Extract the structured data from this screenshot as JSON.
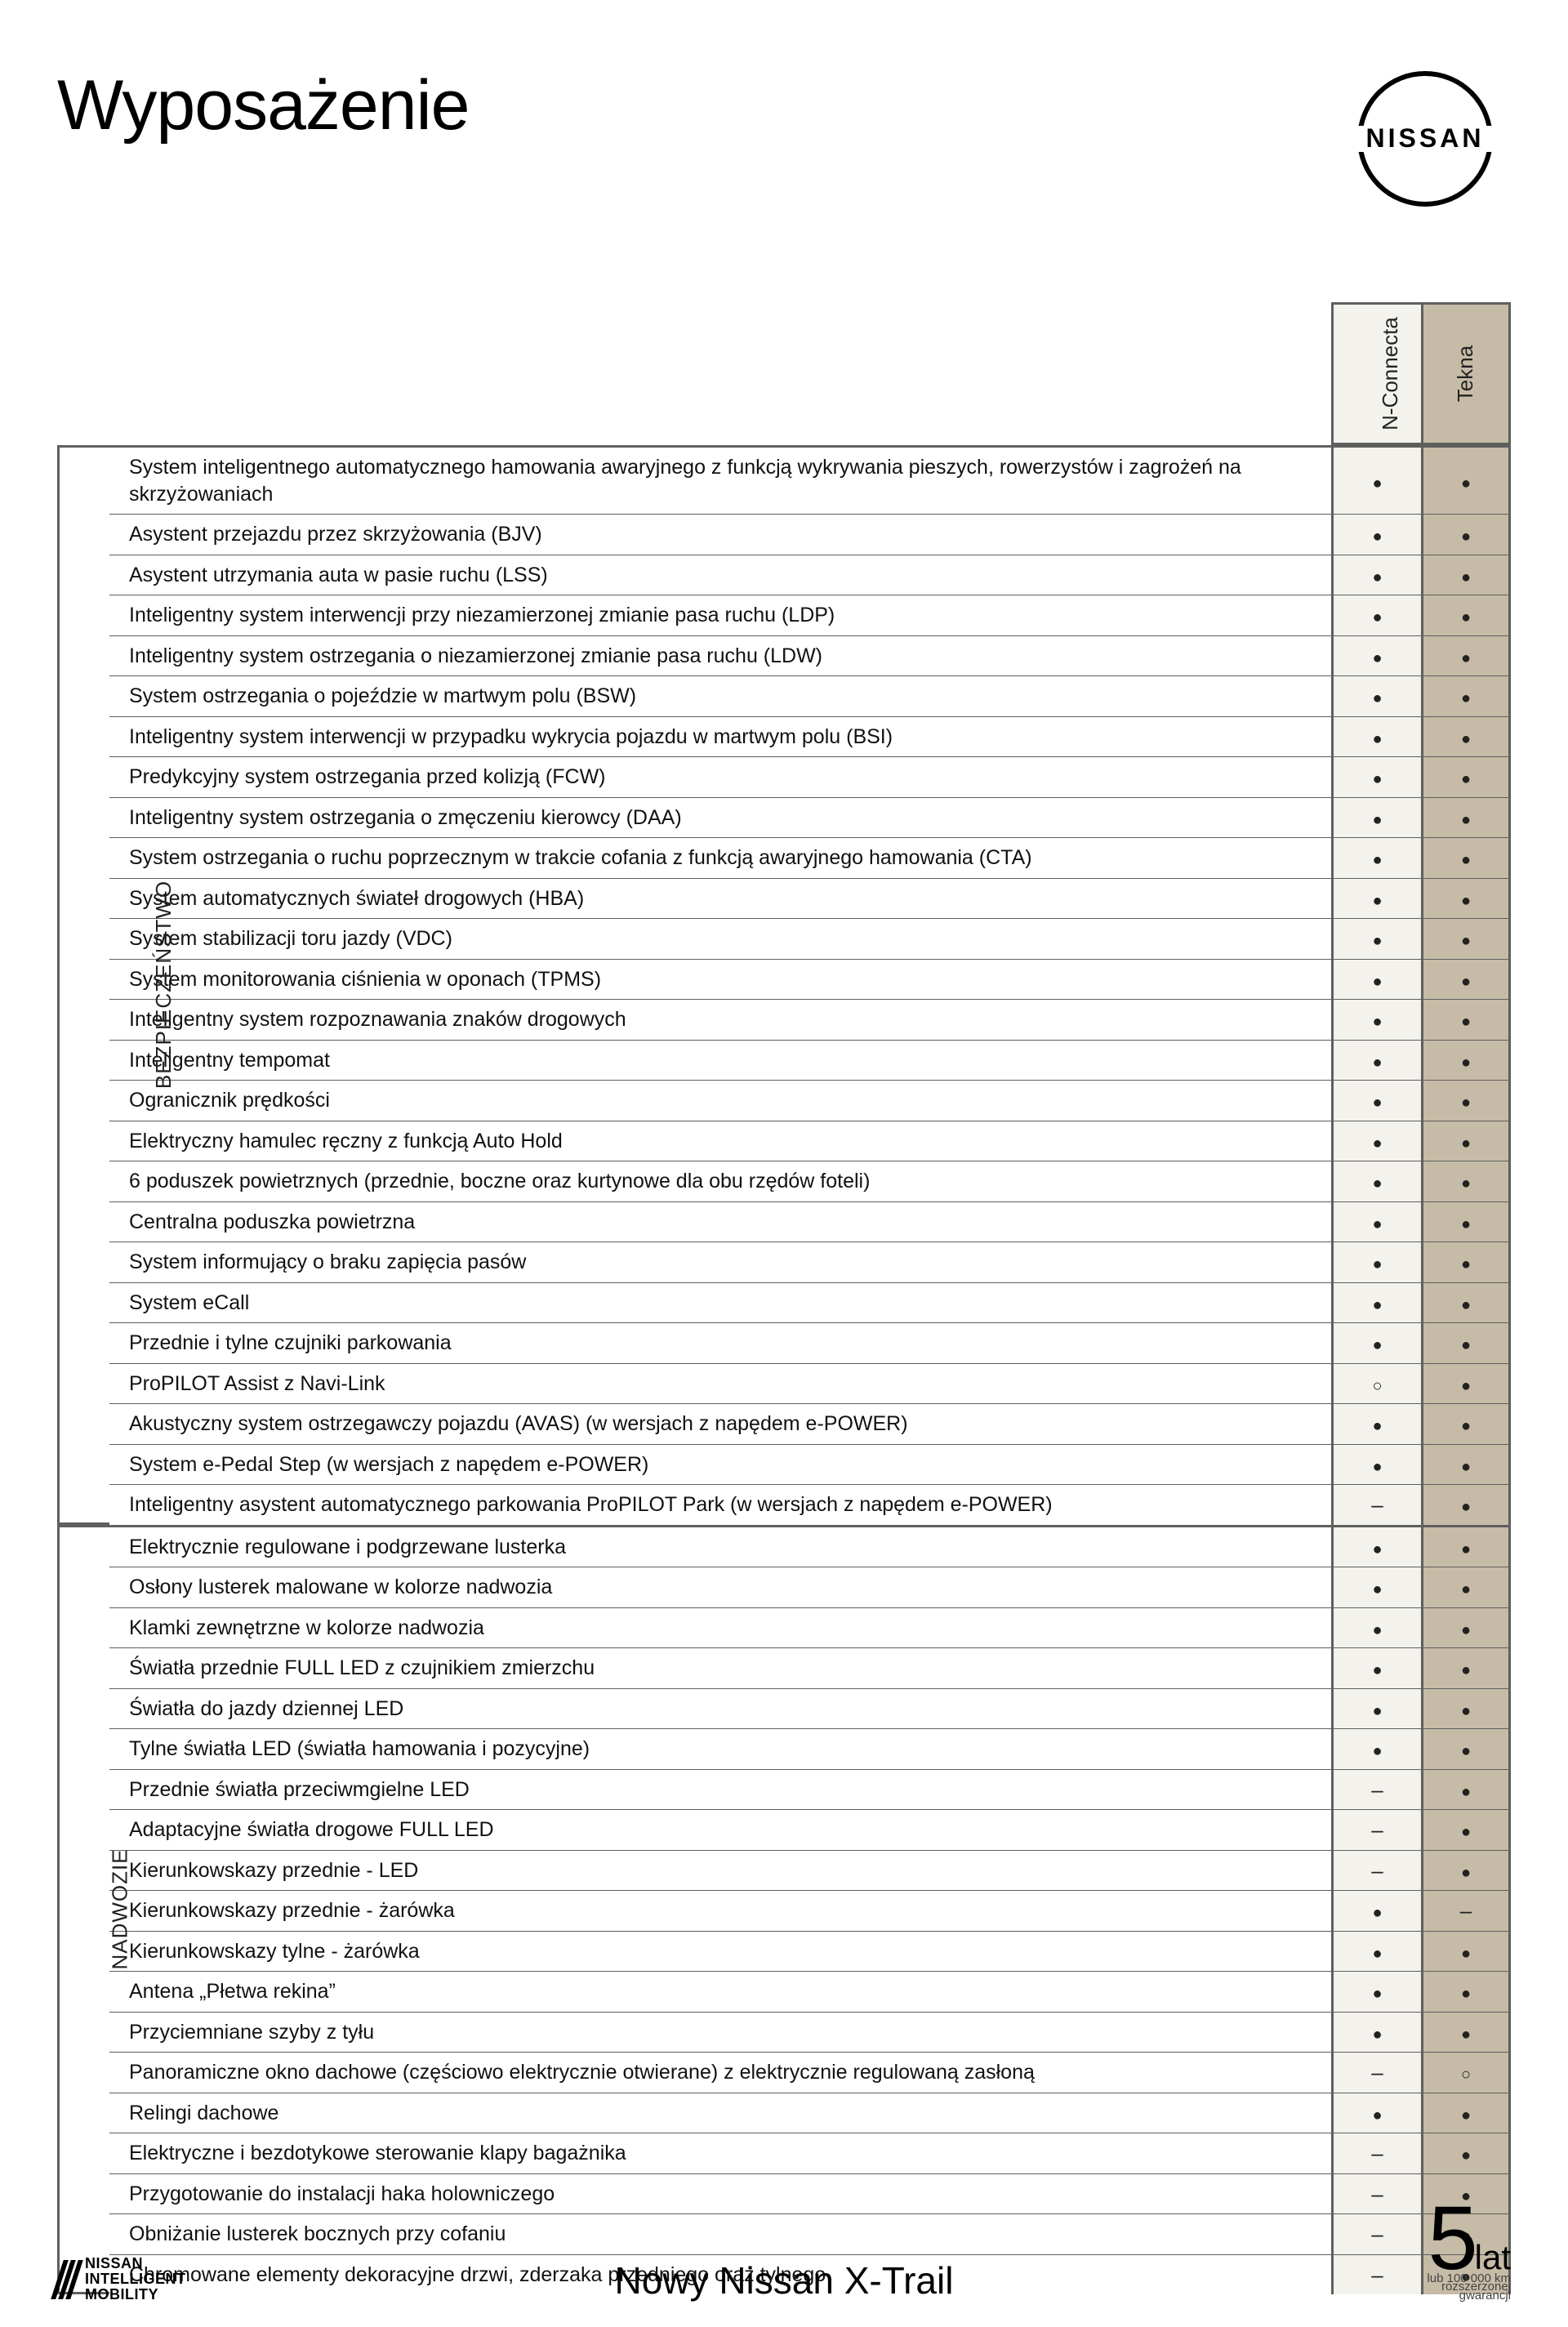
{
  "page": {
    "title": "Wyposażenie",
    "footer_model": "Nowy Nissan X-Trail"
  },
  "brand": {
    "name": "NISSAN",
    "mobility_line1": "NISSAN",
    "mobility_line2": "INTELLIGENT",
    "mobility_line3": "MOBILITY"
  },
  "warranty": {
    "years": "5",
    "years_label": "lat",
    "sub1": "lub 100 000 km",
    "sub2": "rozszerzonej",
    "sub3": "gwarancji"
  },
  "colors": {
    "trim_bg": [
      "#f3f2ed",
      "#c6bba6"
    ],
    "border": "#5f5f5f"
  },
  "trims": [
    "N-Connecta",
    "Tekna"
  ],
  "legend": {
    "standard": "●",
    "optional": "○",
    "na": "–"
  },
  "categories": [
    {
      "name": "BEZPIECZEŃSTWO",
      "rows": [
        {
          "label": "System inteligentnego automatycznego hamowania awaryjnego z funkcją wykrywania pieszych, rowerzystów i zagrożeń na skrzyżowaniach",
          "marks": [
            "●",
            "●"
          ]
        },
        {
          "label": "Asystent przejazdu przez skrzyżowania (BJV)",
          "marks": [
            "●",
            "●"
          ]
        },
        {
          "label": "Asystent utrzymania auta w pasie ruchu (LSS)",
          "marks": [
            "●",
            "●"
          ]
        },
        {
          "label": "Inteligentny system interwencji przy niezamierzonej zmianie pasa ruchu (LDP)",
          "marks": [
            "●",
            "●"
          ]
        },
        {
          "label": "Inteligentny system ostrzegania o niezamierzonej zmianie pasa ruchu (LDW)",
          "marks": [
            "●",
            "●"
          ]
        },
        {
          "label": "System ostrzegania o pojeździe w martwym polu (BSW)",
          "marks": [
            "●",
            "●"
          ]
        },
        {
          "label": "Inteligentny system interwencji w przypadku wykrycia pojazdu w martwym polu (BSI)",
          "marks": [
            "●",
            "●"
          ]
        },
        {
          "label": "Predykcyjny system ostrzegania przed kolizją (FCW)",
          "marks": [
            "●",
            "●"
          ]
        },
        {
          "label": "Inteligentny system ostrzegania o zmęczeniu kierowcy (DAA)",
          "marks": [
            "●",
            "●"
          ]
        },
        {
          "label": "System ostrzegania o ruchu poprzecznym w trakcie cofania z funkcją awaryjnego hamowania (CTA)",
          "marks": [
            "●",
            "●"
          ]
        },
        {
          "label": "System automatycznych świateł drogowych (HBA)",
          "marks": [
            "●",
            "●"
          ]
        },
        {
          "label": "System stabilizacji toru jazdy (VDC)",
          "marks": [
            "●",
            "●"
          ]
        },
        {
          "label": "System monitorowania ciśnienia w oponach (TPMS)",
          "marks": [
            "●",
            "●"
          ]
        },
        {
          "label": "Inteligentny system rozpoznawania znaków drogowych",
          "marks": [
            "●",
            "●"
          ]
        },
        {
          "label": "Inteligentny tempomat",
          "marks": [
            "●",
            "●"
          ]
        },
        {
          "label": "Ogranicznik prędkości",
          "marks": [
            "●",
            "●"
          ]
        },
        {
          "label": "Elektryczny hamulec ręczny z funkcją Auto Hold",
          "marks": [
            "●",
            "●"
          ]
        },
        {
          "label": "6 poduszek powietrznych (przednie, boczne oraz kurtynowe dla obu rzędów foteli)",
          "marks": [
            "●",
            "●"
          ]
        },
        {
          "label": "Centralna poduszka powietrzna",
          "marks": [
            "●",
            "●"
          ]
        },
        {
          "label": "System informujący o braku zapięcia pasów",
          "marks": [
            "●",
            "●"
          ]
        },
        {
          "label": "System eCall",
          "marks": [
            "●",
            "●"
          ]
        },
        {
          "label": "Przednie i tylne czujniki parkowania",
          "marks": [
            "●",
            "●"
          ]
        },
        {
          "label": "ProPILOT Assist z Navi-Link",
          "marks": [
            "○",
            "●"
          ]
        },
        {
          "label": "Akustyczny system ostrzegawczy pojazdu (AVAS) (w wersjach z napędem e-POWER)",
          "marks": [
            "●",
            "●"
          ]
        },
        {
          "label": "System e-Pedal Step (w wersjach z napędem e-POWER)",
          "marks": [
            "●",
            "●"
          ]
        },
        {
          "label": "Inteligentny asystent automatycznego parkowania ProPILOT Park (w wersjach z napędem e-POWER)",
          "marks": [
            "–",
            "●"
          ]
        }
      ]
    },
    {
      "name": "NADWOZIE",
      "rows": [
        {
          "label": "Elektrycznie regulowane i podgrzewane lusterka",
          "marks": [
            "●",
            "●"
          ]
        },
        {
          "label": "Osłony lusterek malowane w kolorze nadwozia",
          "marks": [
            "●",
            "●"
          ]
        },
        {
          "label": "Klamki zewnętrzne w kolorze nadwozia",
          "marks": [
            "●",
            "●"
          ]
        },
        {
          "label": "Światła przednie FULL LED z czujnikiem zmierzchu",
          "marks": [
            "●",
            "●"
          ]
        },
        {
          "label": "Światła do jazdy dziennej LED",
          "marks": [
            "●",
            "●"
          ]
        },
        {
          "label": "Tylne światła LED (światła hamowania i pozycyjne)",
          "marks": [
            "●",
            "●"
          ]
        },
        {
          "label": "Przednie światła przeciwmgielne LED",
          "marks": [
            "–",
            "●"
          ]
        },
        {
          "label": "Adaptacyjne światła drogowe FULL LED",
          "marks": [
            "–",
            "●"
          ]
        },
        {
          "label": "Kierunkowskazy przednie - LED",
          "marks": [
            "–",
            "●"
          ]
        },
        {
          "label": "Kierunkowskazy przednie - żarówka",
          "marks": [
            "●",
            "–"
          ]
        },
        {
          "label": "Kierunkowskazy tylne - żarówka",
          "marks": [
            "●",
            "●"
          ]
        },
        {
          "label": "Antena „Płetwa rekina”",
          "marks": [
            "●",
            "●"
          ]
        },
        {
          "label": "Przyciemniane szyby z tyłu",
          "marks": [
            "●",
            "●"
          ]
        },
        {
          "label": "Panoramiczne okno dachowe (częściowo elektrycznie otwierane) z elektrycznie regulowaną zasłoną",
          "marks": [
            "–",
            "○"
          ]
        },
        {
          "label": "Relingi dachowe",
          "marks": [
            "●",
            "●"
          ]
        },
        {
          "label": "Elektryczne i bezdotykowe sterowanie klapy bagażnika",
          "marks": [
            "–",
            "●"
          ]
        },
        {
          "label": "Przygotowanie do instalacji haka holowniczego",
          "marks": [
            "–",
            "●"
          ]
        },
        {
          "label": "Obniżanie lusterek bocznych przy cofaniu",
          "marks": [
            "–",
            "○"
          ]
        },
        {
          "label": "Chromowane elementy dekoracyjne drzwi, zderzaka przedniego oraz tylnego",
          "marks": [
            "–",
            "●"
          ]
        }
      ]
    }
  ]
}
